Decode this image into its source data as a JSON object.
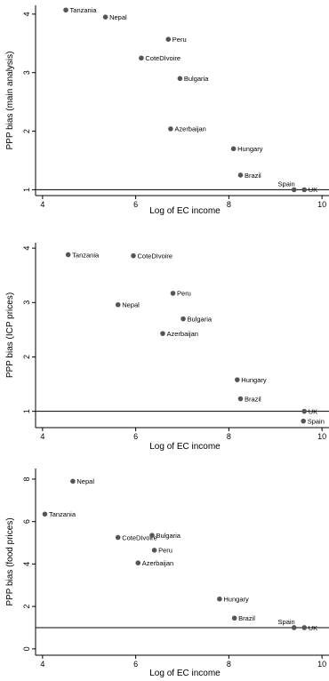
{
  "chart_data": [
    {
      "type": "scatter",
      "xlabel": "Log of EC income",
      "ylabel": "PPP bias (main analysis)",
      "xlim": [
        3.85,
        10.15
      ],
      "ylim": [
        0.9,
        4.15
      ],
      "xticks": [
        4,
        6,
        8,
        10
      ],
      "yticks": [
        1,
        2,
        3,
        4
      ],
      "reference_line": 1,
      "grid": false,
      "points": [
        {
          "label": "Tanzania",
          "x": 4.5,
          "y": 4.07
        },
        {
          "label": "Nepal",
          "x": 5.35,
          "y": 3.95
        },
        {
          "label": "Peru",
          "x": 6.7,
          "y": 3.57
        },
        {
          "label": "CoteDIvoire",
          "x": 6.12,
          "y": 3.25
        },
        {
          "label": "Bulgaria",
          "x": 6.95,
          "y": 2.9
        },
        {
          "label": "Azerbaijan",
          "x": 6.75,
          "y": 2.04
        },
        {
          "label": "Hungary",
          "x": 8.1,
          "y": 1.7
        },
        {
          "label": "Brazil",
          "x": 8.25,
          "y": 1.25
        },
        {
          "label": "Spain",
          "x": 9.4,
          "y": 1.0
        },
        {
          "label": "UK",
          "x": 9.62,
          "y": 1.0
        }
      ]
    },
    {
      "type": "scatter",
      "xlabel": "Log of EC income",
      "ylabel": "PPP bias (ICP prices)",
      "xlim": [
        3.85,
        10.15
      ],
      "ylim": [
        0.7,
        4.1
      ],
      "xticks": [
        4,
        6,
        8,
        10
      ],
      "yticks": [
        1,
        2,
        3,
        4
      ],
      "reference_line": 1,
      "grid": false,
      "points": [
        {
          "label": "Tanzania",
          "x": 4.55,
          "y": 3.88
        },
        {
          "label": "CoteDIvoire",
          "x": 5.95,
          "y": 3.86
        },
        {
          "label": "Peru",
          "x": 6.8,
          "y": 3.17
        },
        {
          "label": "Nepal",
          "x": 5.62,
          "y": 2.96
        },
        {
          "label": "Bulgaria",
          "x": 7.02,
          "y": 2.7
        },
        {
          "label": "Azerbaijan",
          "x": 6.58,
          "y": 2.43
        },
        {
          "label": "Hungary",
          "x": 8.18,
          "y": 1.58
        },
        {
          "label": "Brazil",
          "x": 8.25,
          "y": 1.23
        },
        {
          "label": "UK",
          "x": 9.62,
          "y": 1.0
        },
        {
          "label": "Spain",
          "x": 9.6,
          "y": 0.82
        }
      ]
    },
    {
      "type": "scatter",
      "xlabel": "Log of EC income",
      "ylabel": "PPP bias (food prices)",
      "xlim": [
        3.85,
        10.15
      ],
      "ylim": [
        -0.3,
        8.5
      ],
      "xticks": [
        4,
        6,
        8,
        10
      ],
      "yticks": [
        0,
        2,
        4,
        6,
        8
      ],
      "reference_line": 1,
      "grid": false,
      "points": [
        {
          "label": "Nepal",
          "x": 4.65,
          "y": 7.9
        },
        {
          "label": "Tanzania",
          "x": 4.05,
          "y": 6.35
        },
        {
          "label": "CoteDIvoire",
          "x": 5.62,
          "y": 5.25
        },
        {
          "label": "Bulgaria",
          "x": 6.35,
          "y": 5.35
        },
        {
          "label": "Peru",
          "x": 6.4,
          "y": 4.65
        },
        {
          "label": "Azerbaijan",
          "x": 6.05,
          "y": 4.05
        },
        {
          "label": "Hungary",
          "x": 7.8,
          "y": 2.35
        },
        {
          "label": "Brazil",
          "x": 8.12,
          "y": 1.45
        },
        {
          "label": "Spain",
          "x": 9.4,
          "y": 1.0
        },
        {
          "label": "UK",
          "x": 9.62,
          "y": 1.0
        }
      ]
    }
  ]
}
